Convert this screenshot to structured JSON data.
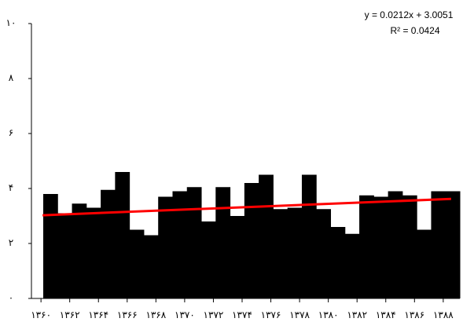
{
  "chart_data": {
    "type": "bar",
    "color": "#000000",
    "categories": [
      "۱۳۶۰",
      null,
      "۱۳۶۲",
      null,
      "۱۳۶۴",
      null,
      "۱۳۶۶",
      null,
      "۱۳۶۸",
      null,
      "۱۳۷۰",
      null,
      "۱۳۷۲",
      null,
      "۱۳۷۴",
      null,
      "۱۳۷۶",
      null,
      "۱۳۷۸",
      null,
      "۱۳۸۰",
      null,
      "۱۳۸۲",
      null,
      "۱۳۸۴",
      null,
      "۱۳۸۶",
      null,
      "۱۳۸۸"
    ],
    "values": [
      3.8,
      3.1,
      3.45,
      3.3,
      3.95,
      4.6,
      2.5,
      2.3,
      3.7,
      3.9,
      4.05,
      2.8,
      4.05,
      3.0,
      4.2,
      4.5,
      3.25,
      3.3,
      4.5,
      3.25,
      2.6,
      2.35,
      3.75,
      3.7,
      3.9,
      3.75,
      2.5,
      3.9,
      3.9
    ],
    "ylim": [
      0,
      10
    ],
    "yticks": [
      {
        "value": 0,
        "label": "۰"
      },
      {
        "value": 2,
        "label": "۲"
      },
      {
        "value": 4,
        "label": "۴"
      },
      {
        "value": 6,
        "label": "۶"
      },
      {
        "value": 8,
        "label": "۸"
      },
      {
        "value": 10,
        "label": "۱۰"
      }
    ],
    "grid": false,
    "trendline": {
      "slope": 0.0212,
      "intercept": 3.0051,
      "color": "#ff0000"
    },
    "annotations": [
      "y = 0.0212x + 3.0051",
      "R² = 0.0424"
    ]
  }
}
